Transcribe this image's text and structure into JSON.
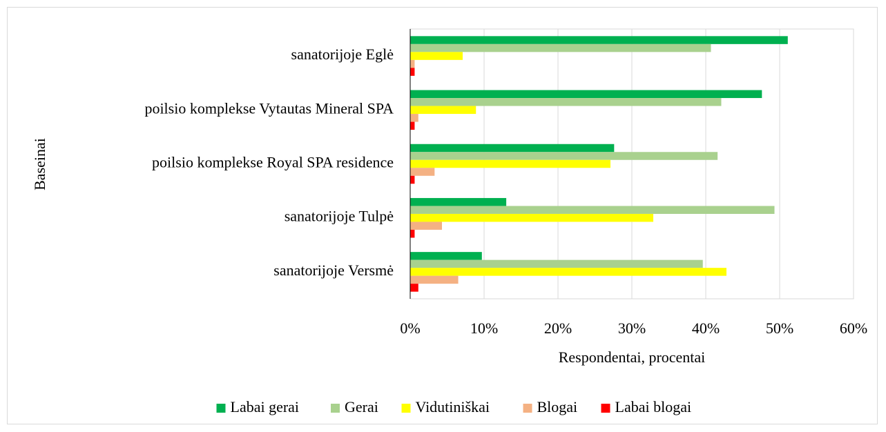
{
  "chart_data": {
    "type": "hbar",
    "y_label": "Baseinai",
    "x_label": "Respondentai, procentai",
    "categories": [
      "sanatorijoje Eglė",
      "poilsio komplekse Vytautas Mineral SPA",
      "poilsio komplekse Royal SPA residence",
      "sanatorijoje Tulpė",
      "sanatorijoje Versmė"
    ],
    "series": [
      {
        "name": "Labai gerai",
        "color": "#00b050",
        "values": [
          51.1,
          47.6,
          27.6,
          13.0,
          9.7
        ]
      },
      {
        "name": "Gerai",
        "color": "#a9d18e",
        "values": [
          40.7,
          42.1,
          41.6,
          49.3,
          39.6
        ]
      },
      {
        "name": "Vidutiniškai",
        "color": "#ffff00",
        "values": [
          7.1,
          8.9,
          27.1,
          32.9,
          42.8
        ]
      },
      {
        "name": "Blogai",
        "color": "#f4b183",
        "values": [
          0.6,
          1.1,
          3.3,
          4.3,
          6.5
        ]
      },
      {
        "name": "Labai blogai",
        "color": "#ff0000",
        "values": [
          0.6,
          0.6,
          0.6,
          0.6,
          1.1
        ]
      }
    ],
    "xlim": [
      0,
      60
    ],
    "xticks": [
      {
        "value": 0,
        "label": "0%"
      },
      {
        "value": 10,
        "label": "10%"
      },
      {
        "value": 20,
        "label": "20%"
      },
      {
        "value": 30,
        "label": "30%"
      },
      {
        "value": 40,
        "label": "40%"
      },
      {
        "value": 50,
        "label": "50%"
      },
      {
        "value": 60,
        "label": "60%"
      }
    ],
    "grid": true,
    "legend": "bottom"
  }
}
